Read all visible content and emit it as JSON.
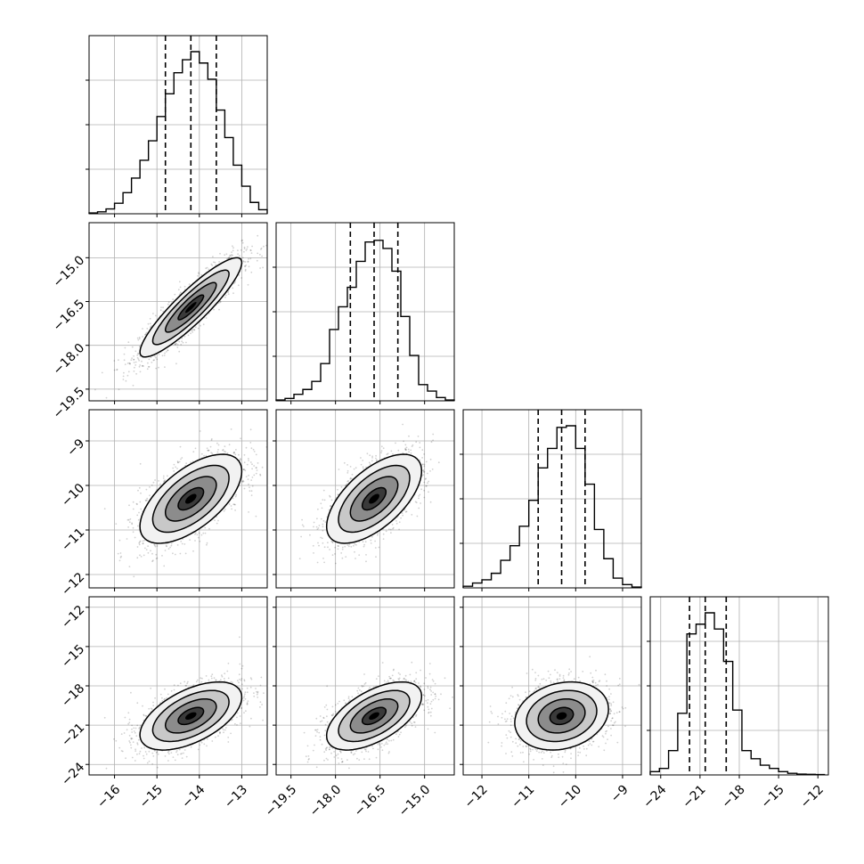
{
  "colors": {
    "background": "#ffffff",
    "axes_frame": "#000000",
    "grid": "#b0b0b0",
    "histogram": "#000000",
    "quantile_lines": "#000000",
    "contours": "#000000",
    "density_fill": "grayscale"
  },
  "chart_data": [
    {
      "id": "hist_0",
      "type": "histogram",
      "row": 0,
      "col": 0,
      "xlim": [
        -16.6,
        -12.4
      ],
      "ylim": [
        0,
        1
      ],
      "grid": true,
      "bins": [
        -16.6,
        -16.4,
        -16.2,
        -16.0,
        -15.8,
        -15.6,
        -15.4,
        -15.2,
        -15.0,
        -14.8,
        -14.6,
        -14.4,
        -14.2,
        -14.0,
        -13.8,
        -13.6,
        -13.4,
        -13.2,
        -13.0,
        -12.8,
        -12.6,
        -12.4
      ],
      "values": [
        0.005,
        0.012,
        0.03,
        0.065,
        0.13,
        0.22,
        0.33,
        0.45,
        0.6,
        0.74,
        0.87,
        0.95,
        1.0,
        0.93,
        0.83,
        0.64,
        0.47,
        0.3,
        0.17,
        0.07,
        0.025
      ],
      "quantiles": [
        -14.8,
        -14.2,
        -13.6
      ]
    },
    {
      "id": "hist_1",
      "type": "histogram",
      "row": 1,
      "col": 1,
      "xlim": [
        -20.0,
        -14.0
      ],
      "ylim": [
        0,
        1
      ],
      "grid": true,
      "bins": [
        -20.0,
        -19.7,
        -19.4,
        -19.1,
        -18.8,
        -18.5,
        -18.2,
        -17.9,
        -17.6,
        -17.3,
        -17.0,
        -16.7,
        -16.4,
        -16.1,
        -15.8,
        -15.5,
        -15.2,
        -14.9,
        -14.6,
        -14.3,
        -14.0
      ],
      "values": [
        0.005,
        0.015,
        0.04,
        0.07,
        0.12,
        0.23,
        0.44,
        0.58,
        0.7,
        0.86,
        0.98,
        0.99,
        0.94,
        0.8,
        0.52,
        0.28,
        0.1,
        0.06,
        0.02,
        0.005
      ],
      "quantiles": [
        -17.5,
        -16.7,
        -15.9
      ]
    },
    {
      "id": "hist_2",
      "type": "histogram",
      "row": 2,
      "col": 2,
      "xlim": [
        -12.4,
        -8.6
      ],
      "ylim": [
        0,
        1
      ],
      "grid": true,
      "bins": [
        -12.4,
        -12.2,
        -12.0,
        -11.8,
        -11.6,
        -11.4,
        -11.2,
        -11.0,
        -10.8,
        -10.6,
        -10.4,
        -10.2,
        -10.0,
        -9.8,
        -9.6,
        -9.4,
        -9.2,
        -9.0,
        -8.8,
        -8.6
      ],
      "values": [
        0.01,
        0.03,
        0.05,
        0.09,
        0.17,
        0.26,
        0.38,
        0.54,
        0.74,
        0.86,
        0.99,
        1.0,
        0.86,
        0.64,
        0.36,
        0.18,
        0.06,
        0.02,
        0.005
      ],
      "quantiles": [
        -10.8,
        -10.3,
        -9.8
      ]
    },
    {
      "id": "hist_3",
      "type": "histogram",
      "row": 3,
      "col": 3,
      "xlim": [
        -24.8,
        -11.2
      ],
      "ylim": [
        0,
        1
      ],
      "grid": true,
      "bins": [
        -24.8,
        -24.1,
        -23.4,
        -22.7,
        -22.0,
        -21.3,
        -20.6,
        -19.9,
        -19.2,
        -18.5,
        -17.8,
        -17.1,
        -16.4,
        -15.7,
        -15.0,
        -14.3,
        -13.6,
        -12.9,
        -12.2,
        -11.5
      ],
      "values": [
        0.02,
        0.04,
        0.15,
        0.38,
        0.87,
        0.93,
        1.0,
        0.9,
        0.7,
        0.4,
        0.15,
        0.1,
        0.06,
        0.04,
        0.02,
        0.01,
        0.005,
        0.004,
        0.002
      ],
      "quantiles": [
        -21.8,
        -20.6,
        -19.0
      ]
    },
    {
      "id": "pair_1_0",
      "type": "scatter-density",
      "row": 1,
      "col": 0,
      "xlim": [
        -16.6,
        -12.4
      ],
      "ylim": [
        -19.9,
        -13.8
      ],
      "grid": true,
      "center": [
        -14.2,
        -16.7
      ],
      "std": [
        0.6,
        0.85
      ],
      "rho": 0.9,
      "contour_levels": [
        0.5,
        1.0,
        1.5,
        2.0
      ]
    },
    {
      "id": "pair_2_0",
      "type": "scatter-density",
      "row": 2,
      "col": 0,
      "xlim": [
        -16.6,
        -12.4
      ],
      "ylim": [
        -12.3,
        -8.3
      ],
      "grid": true,
      "center": [
        -14.2,
        -10.3
      ],
      "std": [
        0.6,
        0.5
      ],
      "rho": 0.62,
      "contour_levels": [
        0.5,
        1.0,
        1.5,
        2.0
      ]
    },
    {
      "id": "pair_2_1",
      "type": "scatter-density",
      "row": 2,
      "col": 1,
      "xlim": [
        -20.0,
        -14.0
      ],
      "ylim": [
        -12.3,
        -8.3
      ],
      "grid": true,
      "center": [
        -16.7,
        -10.3
      ],
      "std": [
        0.8,
        0.5
      ],
      "rho": 0.62,
      "contour_levels": [
        0.5,
        1.0,
        1.5,
        2.0
      ]
    },
    {
      "id": "pair_3_0",
      "type": "scatter-density",
      "row": 3,
      "col": 0,
      "xlim": [
        -16.6,
        -12.4
      ],
      "ylim": [
        -24.8,
        -11.2
      ],
      "grid": true,
      "center": [
        -14.2,
        -20.3
      ],
      "std": [
        0.6,
        1.3
      ],
      "rho": 0.55,
      "contour_levels": [
        0.5,
        1.0,
        1.5,
        2.0
      ]
    },
    {
      "id": "pair_3_1",
      "type": "scatter-density",
      "row": 3,
      "col": 1,
      "xlim": [
        -20.0,
        -14.0
      ],
      "ylim": [
        -24.8,
        -11.2
      ],
      "grid": true,
      "center": [
        -16.7,
        -20.3
      ],
      "std": [
        0.8,
        1.3
      ],
      "rho": 0.58,
      "contour_levels": [
        0.5,
        1.0,
        1.5,
        2.0
      ]
    },
    {
      "id": "pair_3_2",
      "type": "scatter-density",
      "row": 3,
      "col": 2,
      "xlim": [
        -12.4,
        -8.6
      ],
      "ylim": [
        -24.8,
        -11.2
      ],
      "grid": true,
      "center": [
        -10.3,
        -20.3
      ],
      "std": [
        0.5,
        1.3
      ],
      "rho": 0.2,
      "contour_levels": [
        0.5,
        1.0,
        1.5,
        2.0
      ]
    }
  ],
  "axis_ticks": {
    "x": [
      {
        "col": 0,
        "ticks": [
          -16,
          -15,
          -14,
          -13
        ],
        "labels": [
          "−16",
          "−15",
          "−14",
          "−13"
        ]
      },
      {
        "col": 1,
        "ticks": [
          -19.5,
          -18.0,
          -16.5,
          -15.0
        ],
        "labels": [
          "−19.5",
          "−18.0",
          "−16.5",
          "−15.0"
        ]
      },
      {
        "col": 2,
        "ticks": [
          -12,
          -11,
          -10,
          -9
        ],
        "labels": [
          "−12",
          "−11",
          "−10",
          "−9"
        ]
      },
      {
        "col": 3,
        "ticks": [
          -24,
          -21,
          -18,
          -15,
          -12
        ],
        "labels": [
          "−24",
          "−21",
          "−18",
          "−15",
          "−12"
        ]
      }
    ],
    "y": [
      {
        "row": 1,
        "ticks": [
          -15.0,
          -16.5,
          -18.0,
          -19.5
        ],
        "labels": [
          "−15.0",
          "−16.5",
          "−18.0",
          "−19.5"
        ]
      },
      {
        "row": 2,
        "ticks": [
          -9,
          -10,
          -11,
          -12
        ],
        "labels": [
          "−9",
          "−10",
          "−11",
          "−12"
        ]
      },
      {
        "row": 3,
        "ticks": [
          -12,
          -15,
          -18,
          -21,
          -24
        ],
        "labels": [
          "−12",
          "−15",
          "−18",
          "−21",
          "−24"
        ]
      }
    ]
  }
}
